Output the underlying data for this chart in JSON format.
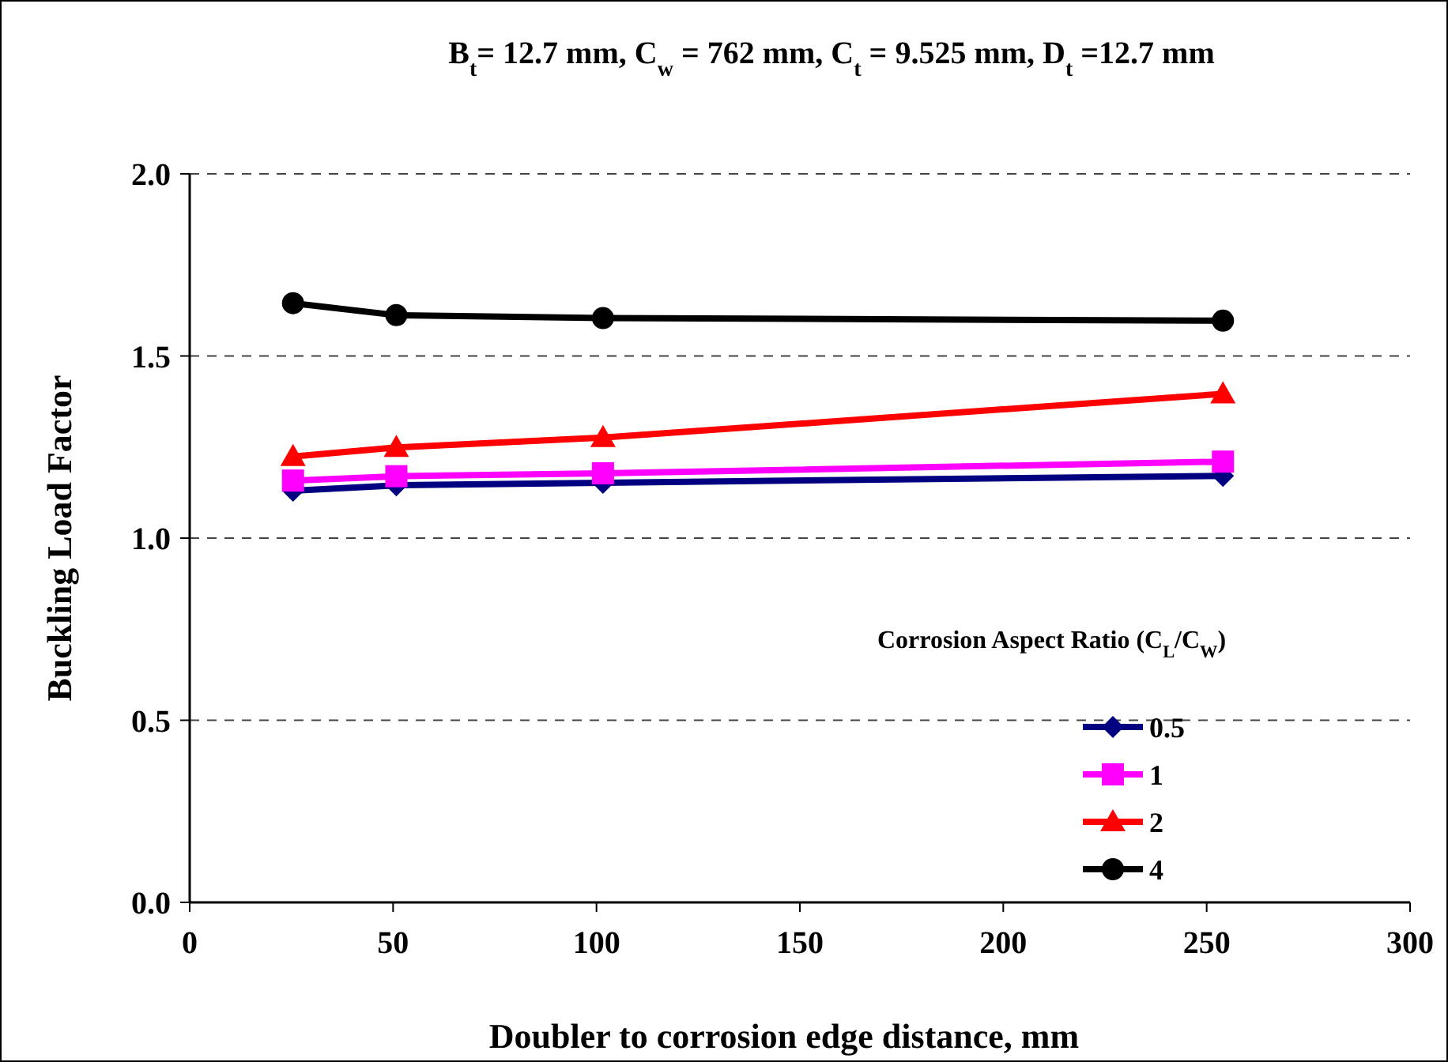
{
  "chart_data": {
    "type": "line",
    "title": "B$_{t}$= 12.7 mm, C$_{w}$ = 762 mm, C$_{t}$ = 9.525 mm, D$_{t}$ =12.7 mm",
    "xlabel": "Doubler to corrosion edge distance, mm",
    "ylabel": "Buckling Load Factor",
    "legend_title": "Corrosion Aspect Ratio (C$_{L}$/C$_{W}$)",
    "x": [
      25.4,
      50.8,
      101.6,
      254
    ],
    "series": [
      {
        "name": "0.5",
        "color": "#000080",
        "marker": "diamond",
        "values": [
          1.13,
          1.145,
          1.152,
          1.171
        ]
      },
      {
        "name": "1",
        "color": "#ff00ff",
        "marker": "square",
        "values": [
          1.158,
          1.17,
          1.178,
          1.21
        ]
      },
      {
        "name": "2",
        "color": "#ff0000",
        "marker": "triangle",
        "values": [
          1.224,
          1.249,
          1.276,
          1.396
        ]
      },
      {
        "name": "4",
        "color": "#000000",
        "marker": "circle",
        "values": [
          1.645,
          1.612,
          1.604,
          1.597
        ]
      }
    ],
    "xlim": [
      0,
      300
    ],
    "xticks": [
      0,
      50,
      100,
      150,
      200,
      250,
      300
    ],
    "ylim": [
      0,
      2
    ],
    "yticks": [
      {
        "value": 0,
        "label": "0.0"
      },
      {
        "value": 0.5,
        "label": "0.5"
      },
      {
        "value": 1,
        "label": "1.0"
      },
      {
        "value": 1.5,
        "label": "1.5"
      },
      {
        "value": 2,
        "label": "2.0"
      }
    ],
    "grid": "y",
    "legend": "bottom right",
    "line_style": "solid"
  }
}
